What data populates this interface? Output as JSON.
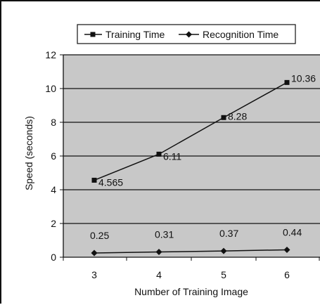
{
  "chart_data": {
    "type": "line",
    "title": "",
    "xlabel": "Number of Training Image",
    "ylabel": "Speed (seconds)",
    "categories": [
      3,
      4,
      5,
      6
    ],
    "ylim": [
      0,
      12
    ],
    "yticks": [
      0,
      2,
      4,
      6,
      8,
      10,
      12
    ],
    "grid": true,
    "legend_position": "top",
    "series": [
      {
        "name": "Training Time",
        "marker": "square",
        "values": [
          4.565,
          6.11,
          8.28,
          10.36
        ],
        "labels": [
          "4.565",
          "6.11",
          "8.28",
          "10.36"
        ]
      },
      {
        "name": "Recognition Time",
        "marker": "diamond",
        "values": [
          0.25,
          0.31,
          0.37,
          0.44
        ],
        "labels": [
          "0.25",
          "0.31",
          "0.37",
          "0.44"
        ]
      }
    ],
    "colors": {
      "plot_bg": "#c8c8c8",
      "line": "#111111",
      "grid": "#111111"
    }
  }
}
